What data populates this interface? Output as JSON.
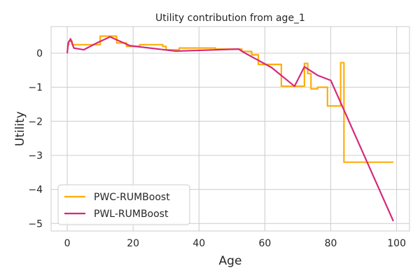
{
  "chart_data": {
    "type": "line",
    "title": "Utility contribution from age_1",
    "xlabel": "Age",
    "ylabel": "Utility",
    "xlim": [
      -4.9,
      103.9
    ],
    "ylim": [
      -5.22,
      0.78
    ],
    "xticks": [
      0,
      20,
      40,
      60,
      80,
      100
    ],
    "yticks": [
      0,
      -1,
      -2,
      -3,
      -4,
      -5
    ],
    "xtick_labels": [
      "0",
      "20",
      "40",
      "60",
      "80",
      "100"
    ],
    "ytick_labels": [
      "0",
      "−1",
      "−2",
      "−3",
      "−4",
      "−5"
    ],
    "grid": true,
    "legend_position": "lower-left",
    "series": [
      {
        "name": "PWC-RUMBoost",
        "color": "#ffad0a",
        "step": true,
        "x": [
          0,
          0.5,
          1.5,
          10,
          14,
          15,
          18,
          22,
          29,
          30,
          34,
          45,
          53,
          56,
          58,
          64,
          65,
          71,
          72,
          73,
          74,
          76,
          79,
          83,
          84,
          99
        ],
        "y": [
          0.25,
          0.35,
          0.25,
          0.5,
          0.5,
          0.3,
          0.2,
          0.25,
          0.2,
          0.1,
          0.15,
          0.12,
          0.05,
          -0.05,
          -0.33,
          -0.33,
          -0.97,
          -0.97,
          -0.3,
          -0.6,
          -1.05,
          -1.0,
          -1.55,
          -0.28,
          -3.2,
          -3.2
        ]
      },
      {
        "name": "PWL-RUMBoost",
        "color": "#d6297a",
        "step": false,
        "x": [
          0,
          0.3,
          1,
          2,
          5,
          9,
          13,
          19,
          33,
          52,
          54,
          62,
          69,
          72,
          76,
          80,
          83,
          99
        ],
        "y": [
          0.0,
          0.3,
          0.42,
          0.15,
          0.1,
          0.3,
          0.48,
          0.22,
          0.06,
          0.12,
          0.0,
          -0.42,
          -0.97,
          -0.4,
          -0.65,
          -0.8,
          -1.45,
          -4.93
        ]
      }
    ]
  }
}
